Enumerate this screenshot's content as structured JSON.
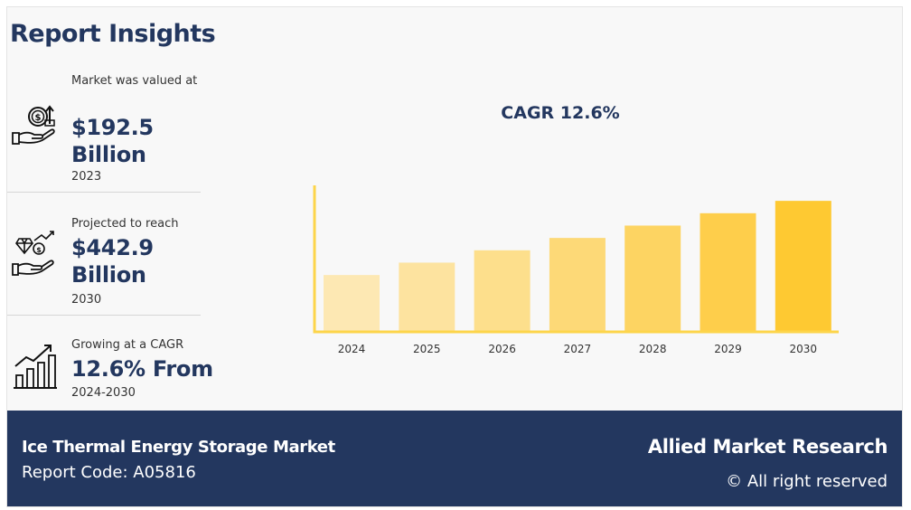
{
  "title": "Report Insights",
  "stats": [
    {
      "label": "Market was valued at",
      "value": "$192.5 Billion",
      "year": "2023",
      "icon": "money-hand-icon"
    },
    {
      "label": "Projected to reach",
      "value": "$442.9 Billion",
      "year": "2030",
      "icon": "growth-hand-icon"
    },
    {
      "label": "Growing at a CAGR",
      "value": "12.6% From",
      "year": "2024-2030",
      "icon": "bar-growth-icon"
    }
  ],
  "chart_data": {
    "type": "bar",
    "title": "CAGR 12.6%",
    "categories": [
      "2024",
      "2025",
      "2026",
      "2027",
      "2028",
      "2029",
      "2030"
    ],
    "values": [
      4.6,
      5.6,
      6.6,
      7.6,
      8.6,
      9.6,
      10.6
    ],
    "ylim": [
      0,
      12
    ],
    "grid": false,
    "colors": [
      "#fde8b3",
      "#fde39f",
      "#fddf8c",
      "#fdd977",
      "#fdd462",
      "#fece4b",
      "#fec932"
    ],
    "axis_color": "#fdd54a"
  },
  "footer": {
    "market": "Ice Thermal Energy Storage Market",
    "code": "Report Code: A05816",
    "brand": "Allied Market Research",
    "rights": "© All right reserved"
  },
  "colors": {
    "navy": "#23375f",
    "background": "#f8f8f8"
  }
}
